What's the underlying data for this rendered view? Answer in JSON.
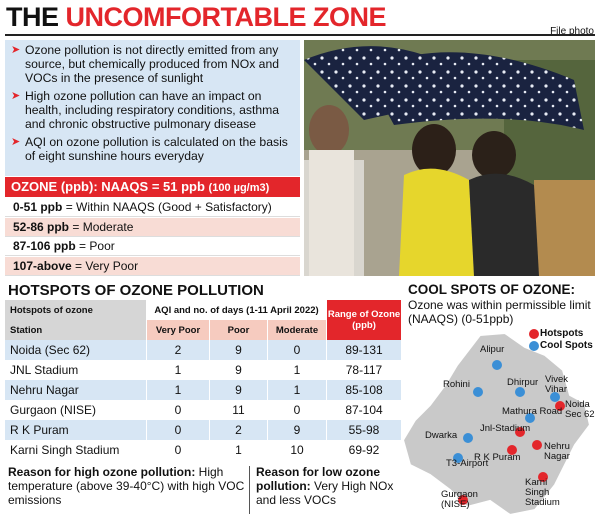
{
  "title": {
    "prefix": "THE",
    "highlight": "UNCOMFORTABLE ZONE"
  },
  "credit": "File photo",
  "bullets": [
    "Ozone pollution is not directly emitted from any source, but chemically produced from NOx and VOCs in the presence of sunlight",
    "High ozone pollution can have an impact on health, including respiratory conditions, asthma and chronic obstructive pulmonary disease",
    "AQI on ozone pollution is calculated on the basis of eight sunshine hours everyday"
  ],
  "naaqs": {
    "label": "OZONE (ppb): NAAQS = 51 ppb",
    "unit": "(100 µg/m3)"
  },
  "levels": [
    {
      "range": "0-51 ppb",
      "text": "= Within NAAQS (Good + Satisfactory)"
    },
    {
      "range": "52-86 ppb",
      "text": "= Moderate"
    },
    {
      "range": "87-106 ppb",
      "text": "= Poor"
    },
    {
      "range": "107-above",
      "text": "= Very Poor"
    }
  ],
  "hotspots": {
    "title": "HOTSPOTS OF OZONE POLLUTION",
    "header": {
      "station_top": "Hotspots of ozone",
      "station": "Station",
      "aqi": "AQI and no. of days (1-11 April 2022)",
      "columns": [
        "Very Poor",
        "Poor",
        "Moderate"
      ],
      "range": "Range of Ozone (ppb)"
    },
    "rows": [
      [
        "Noida (Sec 62)",
        2,
        9,
        0,
        "89-131"
      ],
      [
        "JNL Stadium",
        1,
        9,
        1,
        "78-117"
      ],
      [
        "Nehru Nagar",
        1,
        9,
        1,
        "85-108"
      ],
      [
        "Gurgaon (NISE)",
        0,
        11,
        0,
        "87-104"
      ],
      [
        "R K Puram",
        0,
        2,
        9,
        "55-98"
      ],
      [
        "Karni Singh Stadium",
        0,
        1,
        10,
        "69-92"
      ]
    ]
  },
  "cool_spots": {
    "title": "COOL SPOTS OF OZONE:",
    "subtitle": "Ozone was within permissible limit (NAAQS) (0-51ppb)",
    "legend": [
      {
        "name": "Hotspots",
        "color": "#e3262b"
      },
      {
        "name": "Cool Spots",
        "color": "#3b8fd6"
      }
    ],
    "places": [
      {
        "name": "Alipur",
        "color": "#3b8fd6"
      },
      {
        "name": "Rohini",
        "color": "#3b8fd6"
      },
      {
        "name": "Dhirpur",
        "color": "#3b8fd6"
      },
      {
        "name": "Vivek\nVihar",
        "color": "#3b8fd6"
      },
      {
        "name": "Mathura Road",
        "color": "#3b8fd6"
      },
      {
        "name": "Noida\nSec 62",
        "color": "#e3262b"
      },
      {
        "name": "Jnl-Stadium",
        "color": "#e3262b"
      },
      {
        "name": "Dwarka",
        "color": "#3b8fd6"
      },
      {
        "name": "Nehru\nNagar",
        "color": "#e3262b"
      },
      {
        "name": "R K Puram",
        "color": "#e3262b"
      },
      {
        "name": "T3-Airport",
        "color": "#3b8fd6"
      },
      {
        "name": "Karni\nSingh\nStadium",
        "color": "#e3262b"
      },
      {
        "name": "Gurgaon\n(NISE)",
        "color": "#e3262b"
      }
    ]
  },
  "reasons": [
    {
      "label": "Reason for high ozone pollution:",
      "text": "High temperature (above 39-40°C) with high VOC emissions"
    },
    {
      "label": "Reason for low ozone pollution:",
      "text": "Very High NOx and less VOCs"
    }
  ]
}
